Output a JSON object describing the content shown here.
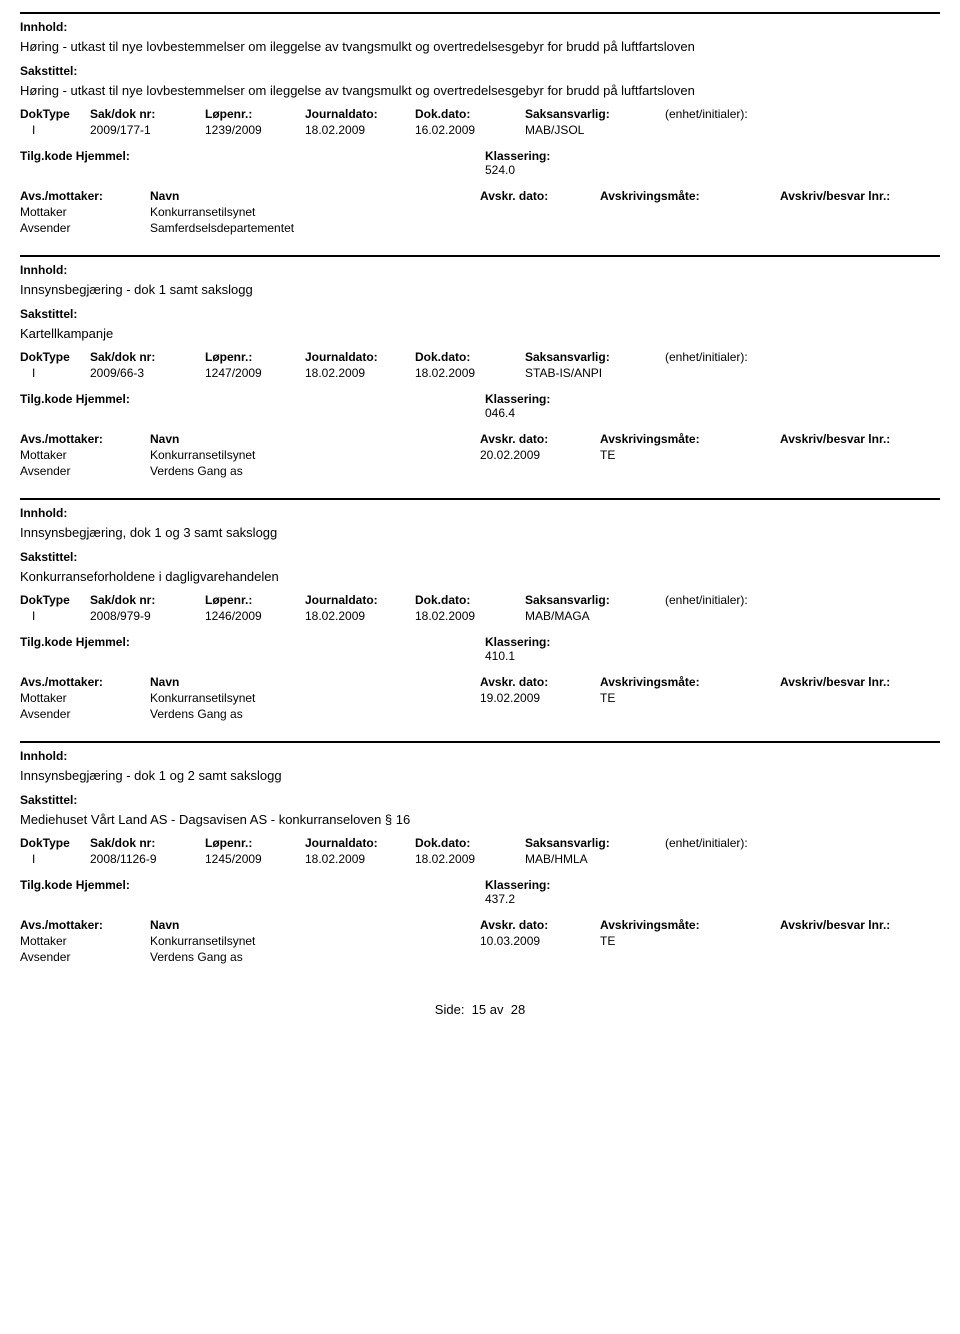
{
  "labels": {
    "innhold": "Innhold:",
    "sakstittel": "Sakstittel:",
    "doktype": "DokType",
    "sakdoknr": "Sak/dok nr:",
    "lopenr": "Løpenr.:",
    "journaldato": "Journaldato:",
    "dokdato": "Dok.dato:",
    "saksansvarlig": "Saksansvarlig:",
    "enhet": "(enhet/initialer):",
    "tilgkode": "Tilg.kode",
    "hjemmel": "Hjemmel:",
    "klassering": "Klassering:",
    "avsmottaker": "Avs./mottaker:",
    "navn": "Navn",
    "avskrdato": "Avskr. dato:",
    "avskrivingsmate": "Avskrivingsmåte:",
    "avskrivbesvar": "Avskriv/besvar lnr.:",
    "mottaker": "Mottaker",
    "avsender": "Avsender"
  },
  "entries": [
    {
      "innhold": "Høring - utkast til nye lovbestemmelser om ileggelse av tvangsmulkt og overtredelsesgebyr for brudd på luftfartsloven",
      "sakstittel": "Høring - utkast til nye lovbestemmelser om ileggelse av tvangsmulkt og overtredelsesgebyr for brudd på luftfartsloven",
      "doktype": "I",
      "sakdoknr": "2009/177-1",
      "lopenr": "1239/2009",
      "journaldato": "18.02.2009",
      "dokdato": "16.02.2009",
      "saksansvarlig": "MAB/JSOL",
      "enhet": "",
      "tilgkode": "",
      "hjemmel": "",
      "klassering": "524.0",
      "mottaker_navn": "Konkurransetilsynet",
      "mottaker_avskrdato": "",
      "mottaker_avskrmate": "",
      "mottaker_besvar": "",
      "avsender_navn": "Samferdselsdepartementet"
    },
    {
      "innhold": "Innsynsbegjæring - dok 1 samt sakslogg",
      "sakstittel": "Kartellkampanje",
      "doktype": "I",
      "sakdoknr": "2009/66-3",
      "lopenr": "1247/2009",
      "journaldato": "18.02.2009",
      "dokdato": "18.02.2009",
      "saksansvarlig": "STAB-IS/ANPI",
      "enhet": "",
      "tilgkode": "",
      "hjemmel": "",
      "klassering": "046.4",
      "mottaker_navn": "Konkurransetilsynet",
      "mottaker_avskrdato": "20.02.2009",
      "mottaker_avskrmate": "TE",
      "mottaker_besvar": "",
      "avsender_navn": "Verdens Gang as"
    },
    {
      "innhold": "Innsynsbegjæring, dok 1 og 3 samt sakslogg",
      "sakstittel": "Konkurranseforholdene i dagligvarehandelen",
      "doktype": "I",
      "sakdoknr": "2008/979-9",
      "lopenr": "1246/2009",
      "journaldato": "18.02.2009",
      "dokdato": "18.02.2009",
      "saksansvarlig": "MAB/MAGA",
      "enhet": "",
      "tilgkode": "",
      "hjemmel": "",
      "klassering": "410.1",
      "mottaker_navn": "Konkurransetilsynet",
      "mottaker_avskrdato": "19.02.2009",
      "mottaker_avskrmate": "TE",
      "mottaker_besvar": "",
      "avsender_navn": "Verdens Gang as"
    },
    {
      "innhold": "Innsynsbegjæring - dok 1 og 2 samt sakslogg",
      "sakstittel": "Mediehuset Vårt Land AS - Dagsavisen AS - konkurranseloven § 16",
      "doktype": "I",
      "sakdoknr": "2008/1126-9",
      "lopenr": "1245/2009",
      "journaldato": "18.02.2009",
      "dokdato": "18.02.2009",
      "saksansvarlig": "MAB/HMLA",
      "enhet": "",
      "tilgkode": "",
      "hjemmel": "",
      "klassering": "437.2",
      "mottaker_navn": "Konkurransetilsynet",
      "mottaker_avskrdato": "10.03.2009",
      "mottaker_avskrmate": "TE",
      "mottaker_besvar": "",
      "avsender_navn": "Verdens Gang as"
    }
  ],
  "footer": {
    "side_label": "Side:",
    "page": "15",
    "av": "av",
    "total": "28"
  }
}
